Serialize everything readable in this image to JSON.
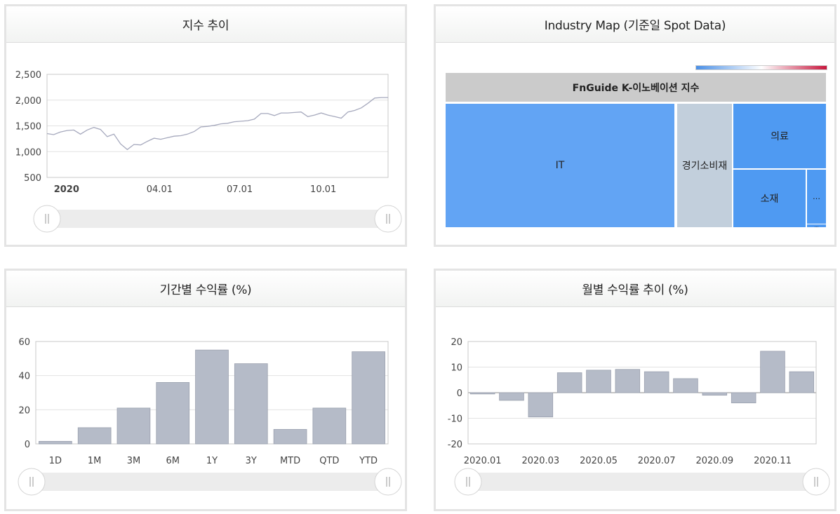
{
  "panels": {
    "index_trend": {
      "title": "지수 추이"
    },
    "industry_map": {
      "title": "Industry Map (기준일 Spot Data)"
    },
    "period_return": {
      "title": "기간별 수익률 (%)"
    },
    "monthly_return": {
      "title": "월별 수익률 추이 (%)"
    }
  },
  "chart_data": [
    {
      "id": "index_trend",
      "type": "line",
      "y_ticks": [
        "2,500",
        "2,000",
        "1,500",
        "1,000",
        "500"
      ],
      "y_tick_values": [
        2500,
        2000,
        1500,
        1000,
        500
      ],
      "ylim": [
        500,
        2500
      ],
      "x_ticks": [
        "2020",
        "04.01",
        "07.01",
        "10.01"
      ],
      "x_tick_positions": [
        0.02,
        0.33,
        0.565,
        0.81
      ],
      "series": [
        {
          "color": "#a6a9bd",
          "values": [
            1350,
            1330,
            1380,
            1410,
            1420,
            1340,
            1420,
            1470,
            1430,
            1290,
            1340,
            1150,
            1040,
            1140,
            1130,
            1200,
            1260,
            1240,
            1270,
            1300,
            1310,
            1340,
            1390,
            1480,
            1490,
            1510,
            1540,
            1550,
            1580,
            1590,
            1600,
            1630,
            1740,
            1740,
            1700,
            1750,
            1750,
            1760,
            1770,
            1680,
            1710,
            1750,
            1710,
            1680,
            1650,
            1770,
            1800,
            1850,
            1940,
            2040,
            2050,
            2050
          ]
        }
      ],
      "grid": true,
      "range_slider": true
    },
    {
      "id": "industry_map",
      "type": "treemap",
      "root": "FnGuide K-이노베이션 지수",
      "colorbar": [
        "#4a8fe6",
        "#ffffff",
        "#c8163d"
      ],
      "cells": [
        {
          "label": "IT",
          "color": "#62a4f4"
        },
        {
          "label": "경기소비재",
          "color": "#c2cfdc"
        },
        {
          "label": "의료",
          "color": "#4f9af2"
        },
        {
          "label": "소재",
          "color": "#4f9af2"
        },
        {
          "label": "…",
          "color": "#4f9af2"
        },
        {
          "label": "…",
          "color": "#4f9af2"
        }
      ]
    },
    {
      "id": "period_return",
      "type": "bar",
      "categories": [
        "1D",
        "1M",
        "3M",
        "6M",
        "1Y",
        "3Y",
        "MTD",
        "QTD",
        "YTD"
      ],
      "values": [
        1.5,
        9.5,
        21,
        36,
        55,
        47,
        8.5,
        21,
        54
      ],
      "y_ticks": [
        "60",
        "40",
        "20",
        "0"
      ],
      "y_tick_values": [
        60,
        40,
        20,
        0
      ],
      "ylim": [
        0,
        60
      ],
      "bar_color": "#b5bbc8",
      "range_slider": true
    },
    {
      "id": "monthly_return",
      "type": "bar",
      "categories": [
        "2020.01",
        "2020.02",
        "2020.03",
        "2020.04",
        "2020.05",
        "2020.06",
        "2020.07",
        "2020.08",
        "2020.09",
        "2020.10",
        "2020.11",
        "2020.12"
      ],
      "x_ticks": [
        "2020.01",
        "2020.03",
        "2020.05",
        "2020.07",
        "2020.09",
        "2020.11"
      ],
      "values": [
        -0.5,
        -3,
        -9.5,
        7.8,
        8.8,
        9.1,
        8.2,
        5.5,
        -1,
        -4,
        16.2,
        8.2
      ],
      "y_ticks": [
        "20",
        "10",
        "0",
        "-10",
        "-20"
      ],
      "y_tick_values": [
        20,
        10,
        0,
        -10,
        -20
      ],
      "ylim": [
        -20,
        20
      ],
      "bar_color": "#b5bbc8",
      "range_slider": true
    }
  ]
}
